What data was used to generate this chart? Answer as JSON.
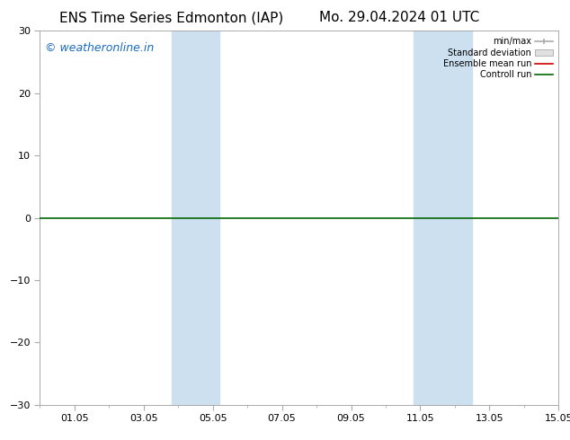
{
  "title_left": "ENS Time Series Edmonton (IAP)",
  "title_right": "Mo. 29.04.2024 01 UTC",
  "ylim": [
    -30,
    30
  ],
  "yticks": [
    -30,
    -20,
    -10,
    0,
    10,
    20,
    30
  ],
  "xlim": [
    0,
    15
  ],
  "x_tick_positions": [
    1,
    3,
    5,
    7,
    9,
    11,
    13,
    15
  ],
  "x_tick_labels": [
    "01.05",
    "03.05",
    "05.05",
    "07.05",
    "09.05",
    "11.05",
    "13.05",
    "15.05"
  ],
  "shaded_bands": [
    {
      "x_start": 3.8,
      "x_end": 5.2
    },
    {
      "x_start": 10.8,
      "x_end": 12.5
    }
  ],
  "shade_color": "#cce0f0",
  "watermark": "© weatheronline.in",
  "watermark_color": "#1a6bbf",
  "legend_labels": [
    "min/max",
    "Standard deviation",
    "Ensemble mean run",
    "Controll run"
  ],
  "minmax_color": "#aaaaaa",
  "std_color": "#cccccc",
  "ensemble_color": "#cc0000",
  "control_color": "#006600",
  "zero_line_color": "#006600",
  "background_color": "#ffffff",
  "spine_color": "#aaaaaa",
  "title_fontsize": 11,
  "tick_fontsize": 8,
  "legend_fontsize": 7,
  "watermark_fontsize": 9,
  "figsize": [
    6.34,
    4.9
  ],
  "dpi": 100
}
